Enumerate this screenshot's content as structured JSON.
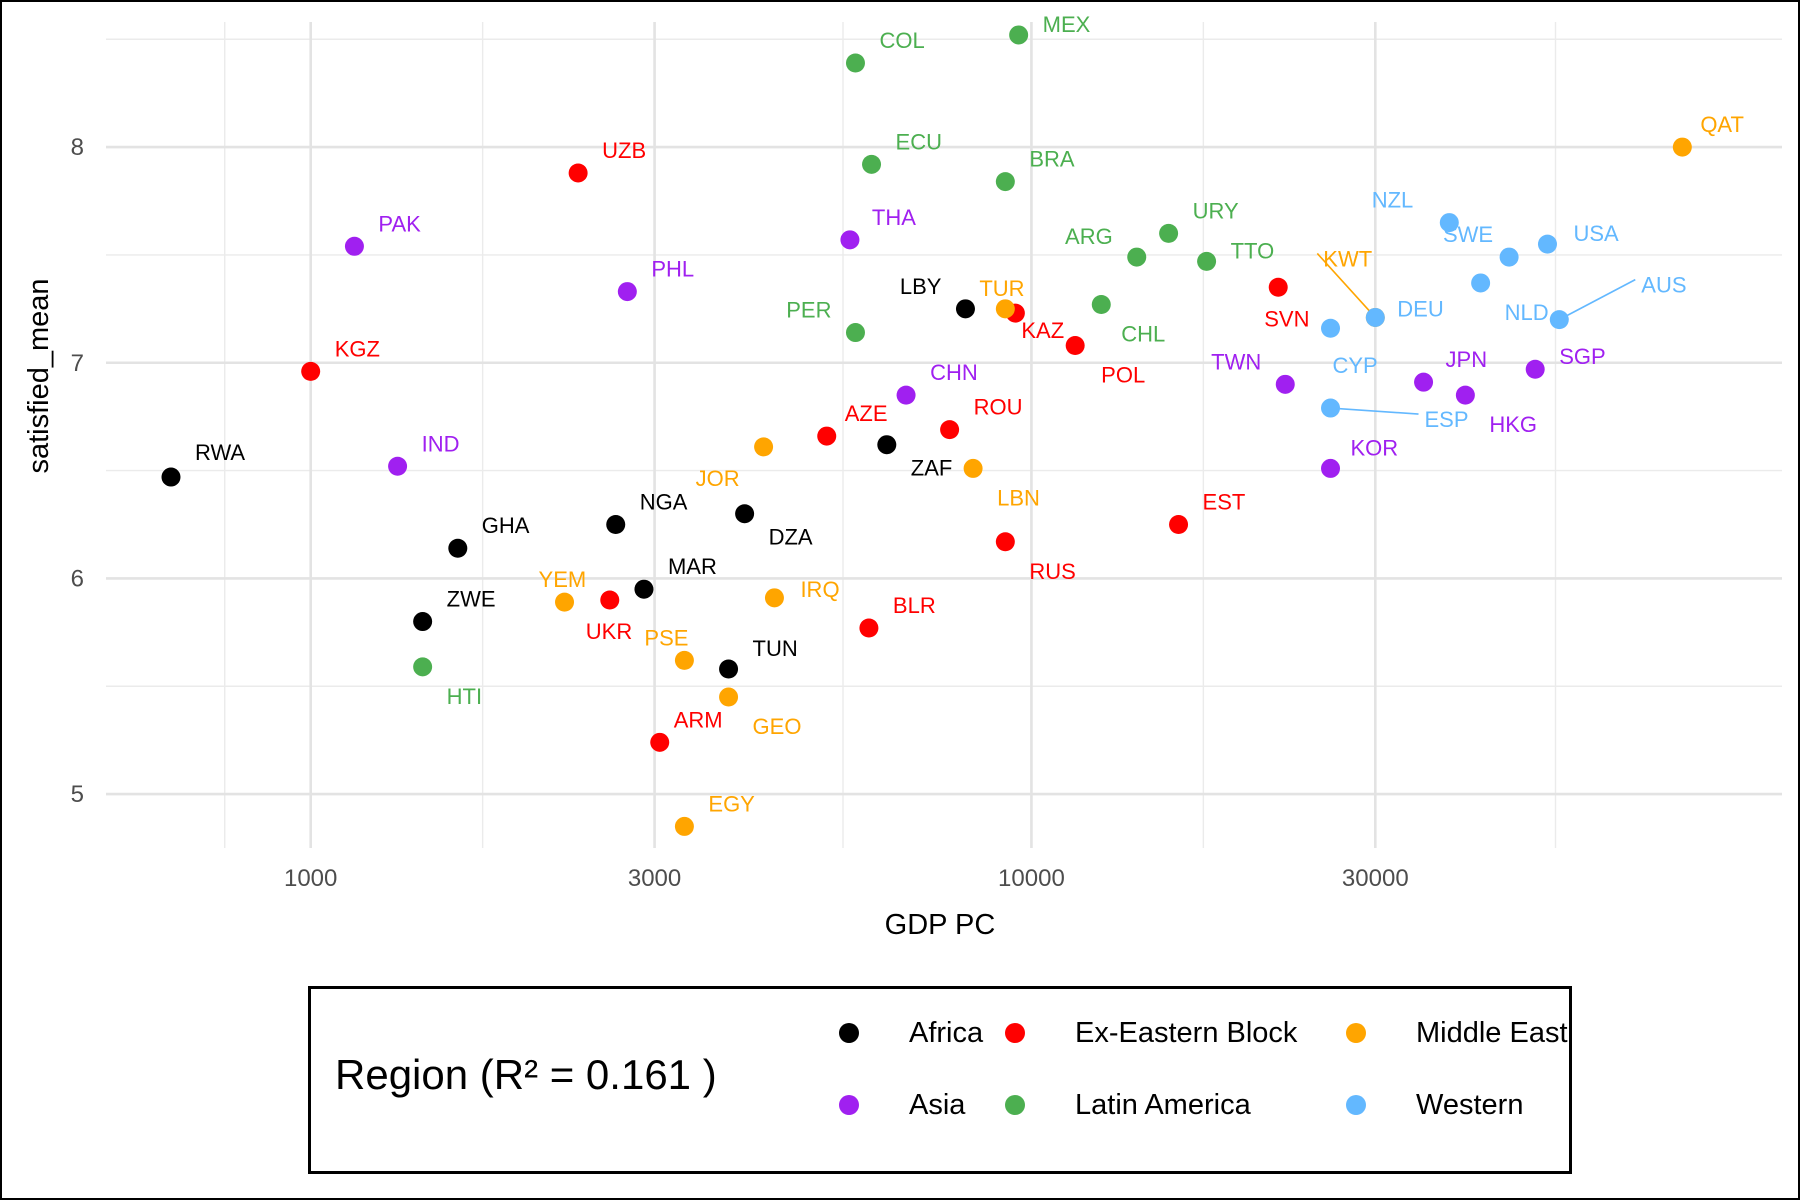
{
  "chart_data": {
    "type": "scatter",
    "xlabel": "GDP PC",
    "ylabel": "satisfied_mean",
    "x_scale": "log10",
    "xlim": [
      520,
      110000
    ],
    "ylim": [
      4.75,
      8.58
    ],
    "x_ticks": [
      1000,
      3000,
      10000,
      30000
    ],
    "x_tick_labels": [
      "1000",
      "3000",
      "10000",
      "30000"
    ],
    "y_ticks": [
      5,
      6,
      7,
      8
    ],
    "y_tick_labels": [
      "5",
      "6",
      "7",
      "8"
    ],
    "grid": true,
    "legend": {
      "title": "Region (R² = 0.161 )",
      "placement": "bottom",
      "entries": [
        {
          "name": "Africa",
          "color": "#000000"
        },
        {
          "name": "Ex-Eastern Block",
          "color": "#ff0000"
        },
        {
          "name": "Middle East",
          "color": "#ffa500"
        },
        {
          "name": "Asia",
          "color": "#a020f0"
        },
        {
          "name": "Latin America",
          "color": "#4caf50"
        },
        {
          "name": "Western",
          "color": "#63b8ff"
        }
      ]
    },
    "points": [
      {
        "label": "RWA",
        "region": "Africa",
        "x": 640,
        "y": 6.47
      },
      {
        "label": "GHA",
        "region": "Africa",
        "x": 1600,
        "y": 6.14
      },
      {
        "label": "NGA",
        "region": "Africa",
        "x": 2650,
        "y": 6.25
      },
      {
        "label": "ZWE",
        "region": "Africa",
        "x": 1430,
        "y": 5.8
      },
      {
        "label": "MAR",
        "region": "Africa",
        "x": 2900,
        "y": 5.95
      },
      {
        "label": "TUN",
        "region": "Africa",
        "x": 3800,
        "y": 5.58
      },
      {
        "label": "DZA",
        "region": "Africa",
        "x": 4000,
        "y": 6.3
      },
      {
        "label": "ZAF",
        "region": "Africa",
        "x": 6300,
        "y": 6.62
      },
      {
        "label": "LBY",
        "region": "Africa",
        "x": 8100,
        "y": 7.25
      },
      {
        "label": "KGZ",
        "region": "Ex-Eastern Block",
        "x": 1000,
        "y": 6.96
      },
      {
        "label": "UZB",
        "region": "Ex-Eastern Block",
        "x": 2350,
        "y": 7.88
      },
      {
        "label": "UKR",
        "region": "Ex-Eastern Block",
        "x": 2600,
        "y": 5.9
      },
      {
        "label": "ARM",
        "region": "Ex-Eastern Block",
        "x": 3050,
        "y": 5.24
      },
      {
        "label": "AZE",
        "region": "Ex-Eastern Block",
        "x": 5200,
        "y": 6.66
      },
      {
        "label": "BLR",
        "region": "Ex-Eastern Block",
        "x": 5950,
        "y": 5.77
      },
      {
        "label": "ROU",
        "region": "Ex-Eastern Block",
        "x": 7700,
        "y": 6.69
      },
      {
        "label": "KAZ",
        "region": "Ex-Eastern Block",
        "x": 9500,
        "y": 7.23
      },
      {
        "label": "RUS",
        "region": "Ex-Eastern Block",
        "x": 9200,
        "y": 6.17
      },
      {
        "label": "POL",
        "region": "Ex-Eastern Block",
        "x": 11500,
        "y": 7.08
      },
      {
        "label": "EST",
        "region": "Ex-Eastern Block",
        "x": 16000,
        "y": 6.25
      },
      {
        "label": "SVN",
        "region": "Ex-Eastern Block",
        "x": 22000,
        "y": 7.35
      },
      {
        "label": "YEM",
        "region": "Middle East",
        "x": 2250,
        "y": 5.89
      },
      {
        "label": "PSE",
        "region": "Middle East",
        "x": 3300,
        "y": 5.62
      },
      {
        "label": "GEO",
        "region": "Middle East",
        "x": 3800,
        "y": 5.45
      },
      {
        "label": "EGY",
        "region": "Middle East",
        "x": 3300,
        "y": 4.85
      },
      {
        "label": "JOR",
        "region": "Middle East",
        "x": 4250,
        "y": 6.61
      },
      {
        "label": "IRQ",
        "region": "Middle East",
        "x": 4400,
        "y": 5.91
      },
      {
        "label": "LBN",
        "region": "Middle East",
        "x": 8300,
        "y": 6.51
      },
      {
        "label": "TUR",
        "region": "Middle East",
        "x": 9200,
        "y": 7.25
      },
      {
        "label": "KWT",
        "region": "Middle East",
        "x": 30000,
        "y": 7.21
      },
      {
        "label": "QAT",
        "region": "Middle East",
        "x": 80000,
        "y": 8.0
      },
      {
        "label": "PAK",
        "region": "Asia",
        "x": 1150,
        "y": 7.54
      },
      {
        "label": "IND",
        "region": "Asia",
        "x": 1320,
        "y": 6.52
      },
      {
        "label": "PHL",
        "region": "Asia",
        "x": 2750,
        "y": 7.33
      },
      {
        "label": "THA",
        "region": "Asia",
        "x": 5600,
        "y": 7.57
      },
      {
        "label": "CHN",
        "region": "Asia",
        "x": 6700,
        "y": 6.85
      },
      {
        "label": "TWN",
        "region": "Asia",
        "x": 22500,
        "y": 6.9
      },
      {
        "label": "KOR",
        "region": "Asia",
        "x": 26000,
        "y": 6.51
      },
      {
        "label": "JPN",
        "region": "Asia",
        "x": 35000,
        "y": 6.91
      },
      {
        "label": "HKG",
        "region": "Asia",
        "x": 40000,
        "y": 6.85
      },
      {
        "label": "SGP",
        "region": "Asia",
        "x": 50000,
        "y": 6.97
      },
      {
        "label": "HTI",
        "region": "Latin America",
        "x": 1430,
        "y": 5.59
      },
      {
        "label": "COL",
        "region": "Latin America",
        "x": 5700,
        "y": 8.39
      },
      {
        "label": "ECU",
        "region": "Latin America",
        "x": 6000,
        "y": 7.92
      },
      {
        "label": "PER",
        "region": "Latin America",
        "x": 5700,
        "y": 7.14
      },
      {
        "label": "MEX",
        "region": "Latin America",
        "x": 9600,
        "y": 8.52
      },
      {
        "label": "BRA",
        "region": "Latin America",
        "x": 9200,
        "y": 7.84
      },
      {
        "label": "CHL",
        "region": "Latin America",
        "x": 12500,
        "y": 7.27
      },
      {
        "label": "ARG",
        "region": "Latin America",
        "x": 14000,
        "y": 7.49
      },
      {
        "label": "URY",
        "region": "Latin America",
        "x": 15500,
        "y": 7.6
      },
      {
        "label": "TTO",
        "region": "Latin America",
        "x": 17500,
        "y": 7.47
      },
      {
        "label": "CYP",
        "region": "Western",
        "x": 26000,
        "y": 7.16
      },
      {
        "label": "ESP",
        "region": "Western",
        "x": 26000,
        "y": 6.79
      },
      {
        "label": "DEU",
        "region": "Western",
        "x": 30000,
        "y": 7.21
      },
      {
        "label": "NZL",
        "region": "Western",
        "x": 38000,
        "y": 7.65
      },
      {
        "label": "NLD",
        "region": "Western",
        "x": 42000,
        "y": 7.37
      },
      {
        "label": "SWE",
        "region": "Western",
        "x": 46000,
        "y": 7.49
      },
      {
        "label": "USA",
        "region": "Western",
        "x": 52000,
        "y": 7.55
      },
      {
        "label": "AUS",
        "region": "Western",
        "x": 54000,
        "y": 7.2
      }
    ]
  }
}
